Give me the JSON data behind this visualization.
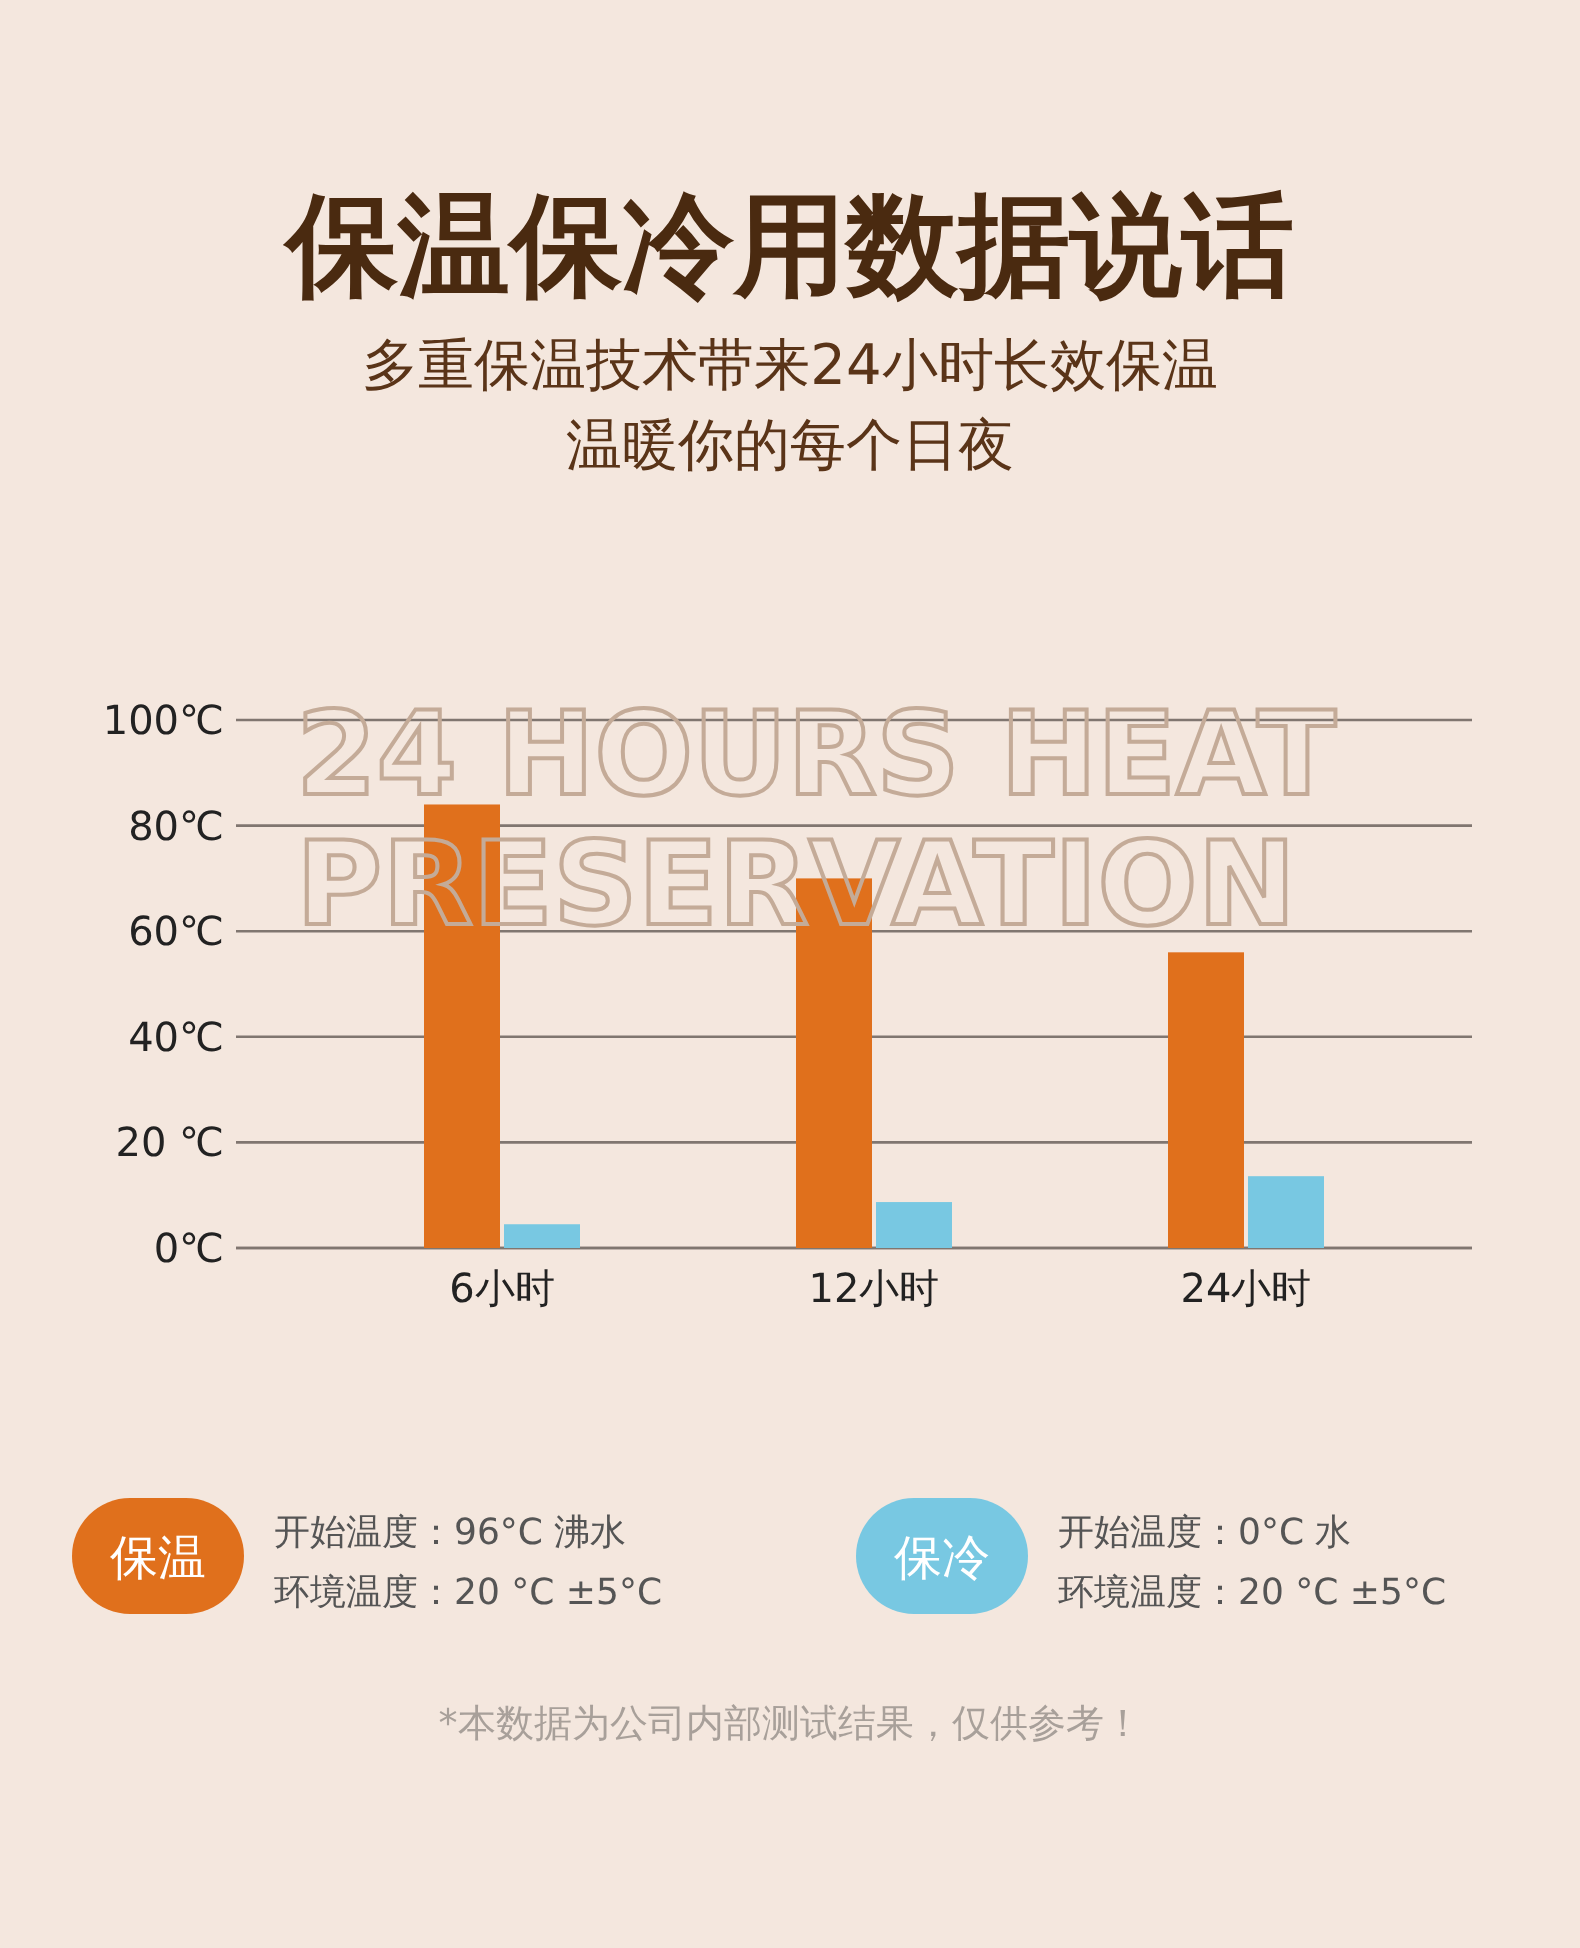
{
  "chart_data": {
    "type": "bar",
    "title": "保温保冷用数据说话",
    "subtitle": "多重保温技术带来24小时长效保温",
    "categories": [
      "6小时",
      "12小时",
      "24小时"
    ],
    "series": [
      {
        "name": "保温",
        "color": "#e0701c",
        "values": [
          84,
          70,
          56
        ]
      },
      {
        "name": "保冷",
        "color": "#78c8e2",
        "values": [
          4.5,
          8.7,
          13.6
        ]
      }
    ],
    "ylim": [
      0,
      100
    ],
    "yticks": [
      {
        "value": 0,
        "label": "0℃"
      },
      {
        "value": 20,
        "label": "20 ℃"
      },
      {
        "value": 40,
        "label": "40℃"
      },
      {
        "value": 60,
        "label": "60℃"
      },
      {
        "value": 80,
        "label": "80℃"
      },
      {
        "value": 100,
        "label": "100℃"
      }
    ],
    "grid": "y",
    "legend": "bottom",
    "annotations": [
      "温暖你的每个日夜",
      "24 HOURS HEAT",
      "PRESERVATION",
      "开始温度：96°C 沸水",
      "环境温度：20 °C ±5°C",
      "开始温度：0°C 水",
      "环境温度：20 °C ±5°C",
      "*本数据为公司内部测试结果，仅供参考！"
    ]
  }
}
